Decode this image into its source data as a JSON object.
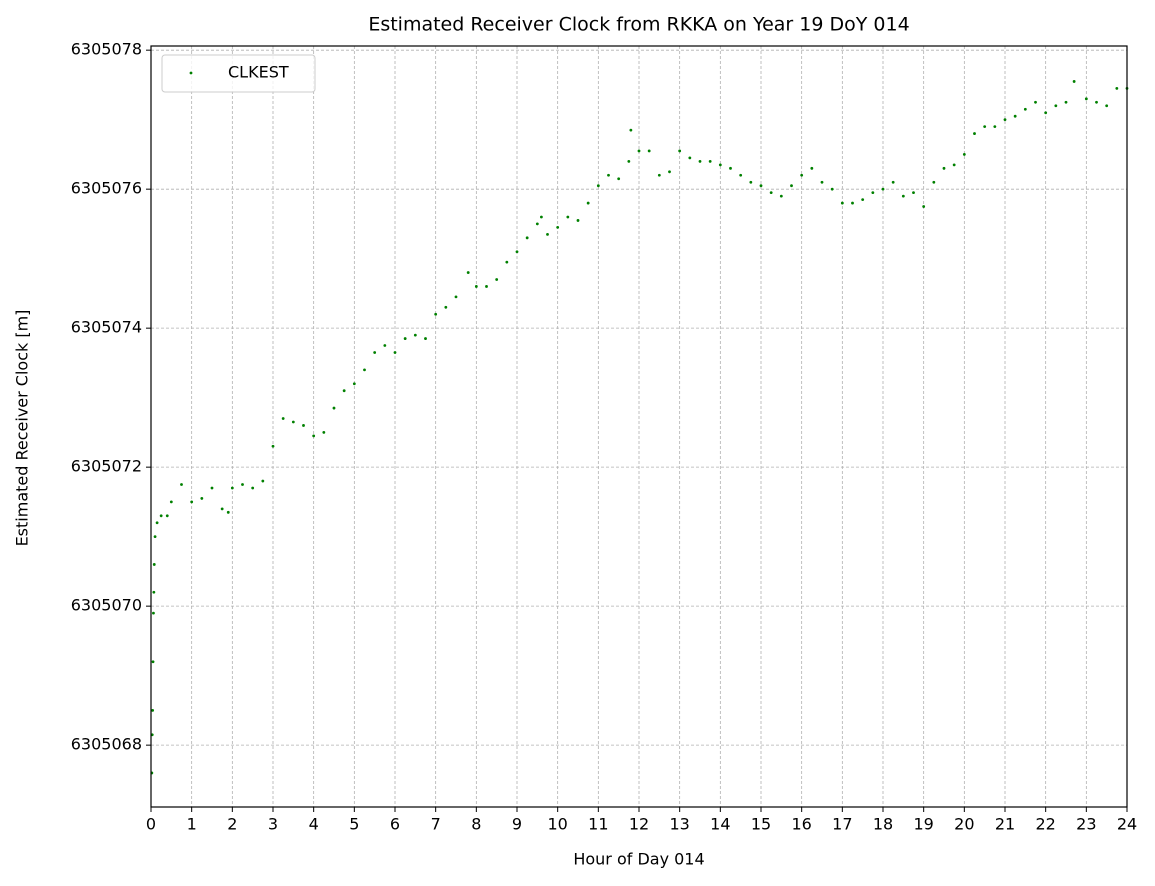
{
  "chart_data": {
    "type": "scatter",
    "title": "Estimated Receiver Clock from RKKA on Year 19 DoY 014",
    "x_label": "Hour of Day 014",
    "y_label": "Estimated Receiver Clock [m]",
    "legend": "upper left",
    "grid": true,
    "xlim": [
      0,
      24
    ],
    "xticks": [
      0,
      1,
      2,
      3,
      4,
      5,
      6,
      7,
      8,
      9,
      10,
      11,
      12,
      13,
      14,
      15,
      16,
      17,
      18,
      19,
      20,
      21,
      22,
      23,
      24
    ],
    "ylim": [
      6305067.11,
      6305078.06
    ],
    "yticks": [
      6305068,
      6305070,
      6305072,
      6305074,
      6305076,
      6305078
    ],
    "series": [
      {
        "name": "CLKEST",
        "color": "#008000",
        "x": [
          0.02,
          0.03,
          0.04,
          0.05,
          0.06,
          0.07,
          0.08,
          0.1,
          0.15,
          0.25,
          0.4,
          0.5,
          0.75,
          1.0,
          1.25,
          1.5,
          1.75,
          1.9,
          2.0,
          2.25,
          2.5,
          2.75,
          3.0,
          3.25,
          3.5,
          3.75,
          4.0,
          4.25,
          4.5,
          4.75,
          5.0,
          5.25,
          5.5,
          5.75,
          6.0,
          6.25,
          6.5,
          6.75,
          7.0,
          7.25,
          7.5,
          7.8,
          8.0,
          8.25,
          8.5,
          8.75,
          9.0,
          9.25,
          9.5,
          9.6,
          9.75,
          10.0,
          10.25,
          10.5,
          10.75,
          11.0,
          11.25,
          11.5,
          11.75,
          11.8,
          12.0,
          12.25,
          12.5,
          12.75,
          13.0,
          13.25,
          13.5,
          13.75,
          14.0,
          14.25,
          14.5,
          14.75,
          15.0,
          15.25,
          15.5,
          15.75,
          16.0,
          16.25,
          16.5,
          16.75,
          17.0,
          17.25,
          17.5,
          17.75,
          18.0,
          18.25,
          18.5,
          18.75,
          19.0,
          19.25,
          19.5,
          19.75,
          20.0,
          20.25,
          20.5,
          20.75,
          21.0,
          21.25,
          21.5,
          21.75,
          22.0,
          22.25,
          22.5,
          22.7,
          23.0,
          23.25,
          23.5,
          23.75,
          24.0
        ],
        "values": [
          6305067.6,
          6305068.15,
          6305068.5,
          6305069.2,
          6305069.9,
          6305070.2,
          6305070.6,
          6305071.0,
          6305071.2,
          6305071.3,
          6305071.3,
          6305071.5,
          6305071.75,
          6305071.5,
          6305071.55,
          6305071.7,
          6305071.4,
          6305071.35,
          6305071.7,
          6305071.75,
          6305071.7,
          6305071.8,
          6305072.3,
          6305072.7,
          6305072.65,
          6305072.6,
          6305072.45,
          6305072.5,
          6305072.85,
          6305073.1,
          6305073.2,
          6305073.4,
          6305073.65,
          6305073.75,
          6305073.65,
          6305073.85,
          6305073.9,
          6305073.85,
          6305074.2,
          6305074.3,
          6305074.45,
          6305074.8,
          6305074.6,
          6305074.6,
          6305074.7,
          6305074.95,
          6305075.1,
          6305075.3,
          6305075.5,
          6305075.6,
          6305075.35,
          6305075.45,
          6305075.6,
          6305075.55,
          6305075.8,
          6305076.05,
          6305076.2,
          6305076.15,
          6305076.4,
          6305076.85,
          6305076.55,
          6305076.55,
          6305076.2,
          6305076.25,
          6305076.55,
          6305076.45,
          6305076.4,
          6305076.4,
          6305076.35,
          6305076.3,
          6305076.2,
          6305076.1,
          6305076.05,
          6305075.95,
          6305075.9,
          6305076.05,
          6305076.2,
          6305076.3,
          6305076.1,
          6305076.0,
          6305075.8,
          6305075.8,
          6305075.85,
          6305075.95,
          6305076.0,
          6305076.1,
          6305075.9,
          6305075.95,
          6305075.75,
          6305076.1,
          6305076.3,
          6305076.35,
          6305076.5,
          6305076.8,
          6305076.9,
          6305076.9,
          6305077.0,
          6305077.05,
          6305077.15,
          6305077.25,
          6305077.1,
          6305077.2,
          6305077.25,
          6305077.55,
          6305077.3,
          6305077.25,
          6305077.2,
          6305077.45,
          6305077.45
        ]
      }
    ]
  }
}
